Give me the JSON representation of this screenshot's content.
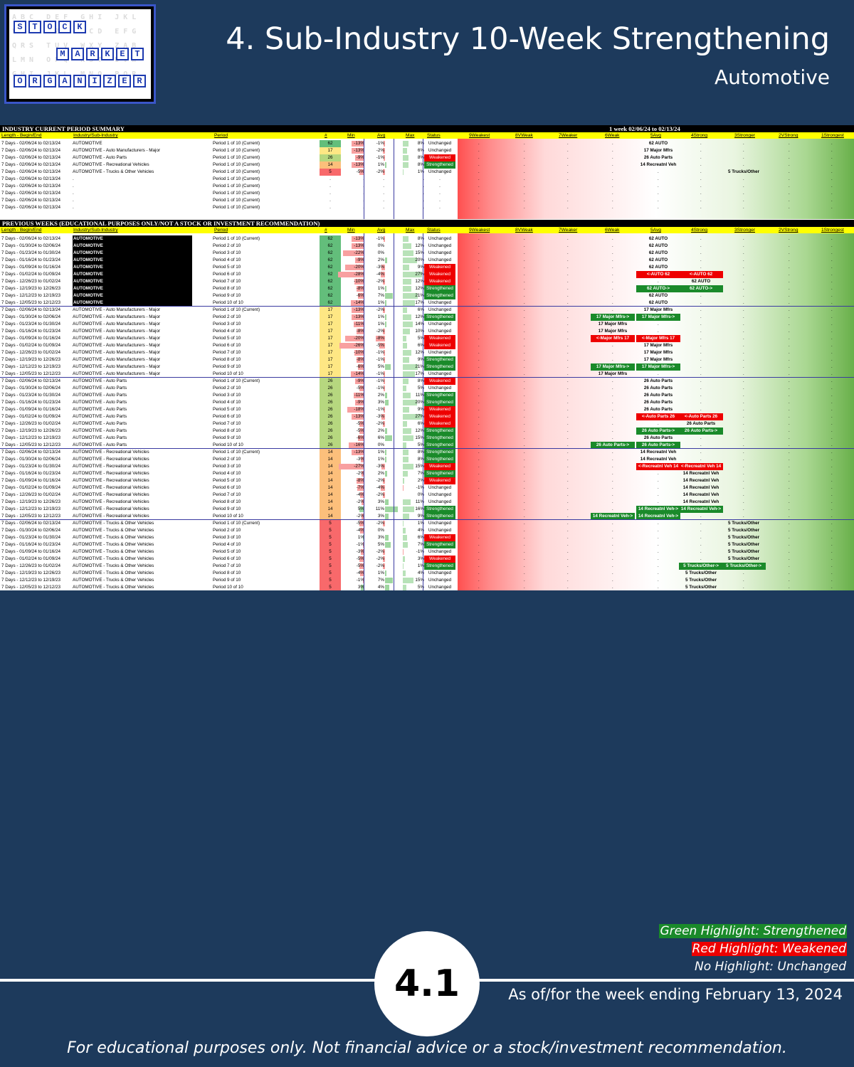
{
  "logo": {
    "row1": "STOCK",
    "row2": "MARKET",
    "row3": "ORGANIZER",
    "ghost_text": "ABC DEF GHI JKL\nVWX YZA BCD EFG\nQRS TUV WXY ZAB\nLMN OPQ RST UVW\nGHI JKL MNO PQR"
  },
  "header": {
    "title": "4. Sub-Industry 10-Week Strengthening",
    "subtitle": "Automotive"
  },
  "sheet": {
    "current_title": "INDUSTRY CURRENT PERIOD SUMMARY",
    "current_range": "1 week 02/06/24 to 02/13/24",
    "previous_title": "PREVIOUS WEEKS (EDUCATIONAL PURPOSES ONLY/NOT A STOCK OR INVESTMENT RECOMMENDATION)",
    "columns": [
      "Length - Begin/End",
      "Industry/Sub-Industry",
      "Period",
      "#",
      "Min",
      "Avg",
      "Max",
      "Status",
      "9Weakest",
      "8VWeak",
      "7Weaker",
      "6Weak",
      "5Avg",
      "4Strong",
      "3Stronger",
      "2VStrong",
      "1Strongest"
    ],
    "current_rows": [
      {
        "len": "7 Days - 02/06/24 to 02/13/24",
        "ind": "AUTOMOTIVE",
        "per": "Period 1 of 10 (Current)",
        "n": "62",
        "min": "-13%",
        "avg": "-1%",
        "max": "8%",
        "status": "Unchanged",
        "tag": "62 AUTO",
        "pos": 4
      },
      {
        "len": "7 Days - 02/06/24 to 02/13/24",
        "ind": "AUTOMOTIVE - Auto Manufacturers - Major",
        "per": "Period 1 of 10 (Current)",
        "n": "17",
        "min": "-13%",
        "avg": "-2%",
        "max": "6%",
        "status": "Unchanged",
        "tag": "17 Major Mfrs",
        "pos": 4
      },
      {
        "len": "7 Days - 02/06/24 to 02/13/24",
        "ind": "AUTOMOTIVE - Auto Parts",
        "per": "Period 1 of 10 (Current)",
        "n": "26",
        "min": "-9%",
        "avg": "-1%",
        "max": "8%",
        "status": "Weakened",
        "tag": "26 Auto Parts",
        "pos": 4
      },
      {
        "len": "7 Days - 02/06/24 to 02/13/24",
        "ind": "AUTOMOTIVE - Recreational Vehicles",
        "per": "Period 1 of 10 (Current)",
        "n": "14",
        "min": "-13%",
        "avg": "1%",
        "max": "8%",
        "status": "Strengthened",
        "tag": "14 Recreatnl Veh",
        "pos": 4
      },
      {
        "len": "7 Days - 02/06/24 to 02/13/24",
        "ind": "AUTOMOTIVE - Trucks & Other Vehicles",
        "per": "Period 1 of 10 (Current)",
        "n": "5",
        "min": "-5%",
        "avg": "-2%",
        "max": "1%",
        "status": "Unchanged",
        "tag": "5 Trucks/Other",
        "pos": 6
      },
      {
        "len": "7 Days - 02/06/24 to 02/13/24",
        "ind": ".",
        "per": "Period 1 of 10 (Current)",
        "n": ".",
        "min": ".",
        "avg": ".",
        "max": ".",
        "status": ".",
        "tag": "",
        "pos": -1
      },
      {
        "len": "7 Days - 02/06/24 to 02/13/24",
        "ind": ".",
        "per": "Period 1 of 10 (Current)",
        "n": ".",
        "min": ".",
        "avg": ".",
        "max": ".",
        "status": ".",
        "tag": "",
        "pos": -1
      },
      {
        "len": "7 Days - 02/06/24 to 02/13/24",
        "ind": ".",
        "per": "Period 1 of 10 (Current)",
        "n": ".",
        "min": ".",
        "avg": ".",
        "max": ".",
        "status": ".",
        "tag": "",
        "pos": -1
      },
      {
        "len": "7 Days - 02/06/24 to 02/13/24",
        "ind": ".",
        "per": "Period 1 of 10 (Current)",
        "n": ".",
        "min": ".",
        "avg": ".",
        "max": ".",
        "status": ".",
        "tag": "",
        "pos": -1
      },
      {
        "len": "7 Days - 02/06/24 to 02/13/24",
        "ind": ".",
        "per": "Period 1 of 10 (Current)",
        "n": ".",
        "min": ".",
        "avg": ".",
        "max": ".",
        "status": ".",
        "tag": "",
        "pos": -1
      }
    ],
    "groups": [
      {
        "ind": "AUTOMOTIVE",
        "n": "62",
        "rows": [
          [
            "7 Days - 02/06/24 to 02/13/24",
            "Period 1 of 10 (Current)",
            "-13%",
            "-1%",
            "8%",
            "Unchanged",
            "62 AUTO",
            4,
            ""
          ],
          [
            "7 Days - 01/30/24 to 02/06/24",
            "Period 2 of 10",
            "-13%",
            "0%",
            "12%",
            "Unchanged",
            "62 AUTO",
            4,
            ""
          ],
          [
            "7 Days - 01/23/24 to 01/30/24",
            "Period 3 of 10",
            "-22%",
            "0%",
            "15%",
            "Unchanged",
            "62 AUTO",
            4,
            ""
          ],
          [
            "7 Days - 01/16/24 to 01/23/24",
            "Period 4 of 10",
            "-9%",
            "2%",
            "20%",
            "Unchanged",
            "62 AUTO",
            4,
            ""
          ],
          [
            "7 Days - 01/09/24 to 01/16/24",
            "Period 5 of 10",
            "-20%",
            "-3%",
            "9%",
            "Weakened",
            "62 AUTO",
            4,
            ""
          ],
          [
            "7 Days - 01/02/24 to 01/09/24",
            "Period 6 of 10",
            "-28%",
            "-4%",
            "27%",
            "Weakened",
            "<-AUTO 62",
            4,
            "<-AUTO 62"
          ],
          [
            "7 Days - 12/26/23 to 01/02/24",
            "Period 7 of 10",
            "-10%",
            "-2%",
            "12%",
            "Weakened",
            "62 AUTO",
            5,
            ""
          ],
          [
            "7 Days - 12/19/23 to 12/26/23",
            "Period 8 of 10",
            "-8%",
            "1%",
            "12%",
            "Strengthened",
            "62 AUTO->",
            4,
            "62 AUTO->"
          ],
          [
            "7 Days - 12/12/23 to 12/19/23",
            "Period 9 of 10",
            "-6%",
            "7%",
            "21%",
            "Strengthened",
            "62 AUTO",
            4,
            ""
          ],
          [
            "7 Days - 12/05/23 to 12/12/23",
            "Period 10 of 10",
            "-14%",
            "1%",
            "17%",
            "Unchanged",
            "62 AUTO",
            4,
            ""
          ]
        ]
      },
      {
        "ind": "AUTOMOTIVE - Auto Manufacturers - Major",
        "n": "17",
        "rows": [
          [
            "7 Days - 02/06/24 to 02/13/24",
            "Period 1 of 10 (Current)",
            "-13%",
            "-2%",
            "6%",
            "Unchanged",
            "17 Major Mfrs",
            4,
            ""
          ],
          [
            "7 Days - 01/30/24 to 02/06/24",
            "Period 2 of 10",
            "-13%",
            "1%",
            "12%",
            "Strengthened",
            "17 Major Mfrs->",
            3,
            "17 Major Mfrs->"
          ],
          [
            "7 Days - 01/23/24 to 01/30/24",
            "Period 3 of 10",
            "-11%",
            "1%",
            "14%",
            "Unchanged",
            "17 Major Mfrs",
            3,
            ""
          ],
          [
            "7 Days - 01/16/24 to 01/23/24",
            "Period 4 of 10",
            "-8%",
            "-2%",
            "10%",
            "Unchanged",
            "17 Major Mfrs",
            3,
            ""
          ],
          [
            "7 Days - 01/09/24 to 01/16/24",
            "Period 5 of 10",
            "-20%",
            "-8%",
            "5%",
            "Weakened",
            "<-Major Mfrs 17",
            3,
            "<-Major Mfrs 17"
          ],
          [
            "7 Days - 01/02/24 to 01/09/24",
            "Period 6 of 10",
            "-26%",
            "-5%",
            "6%",
            "Weakened",
            "17 Major Mfrs",
            4,
            ""
          ],
          [
            "7 Days - 12/26/23 to 01/02/24",
            "Period 7 of 10",
            "-10%",
            "-1%",
            "12%",
            "Unchanged",
            "17 Major Mfrs",
            4,
            ""
          ],
          [
            "7 Days - 12/19/23 to 12/26/23",
            "Period 8 of 10",
            "-8%",
            "-1%",
            "9%",
            "Strengthened",
            "17 Major Mfrs",
            4,
            ""
          ],
          [
            "7 Days - 12/12/23 to 12/19/23",
            "Period 9 of 10",
            "-6%",
            "5%",
            "21%",
            "Strengthened",
            "17 Major Mfrs->",
            3,
            "17 Major Mfrs->"
          ],
          [
            "7 Days - 12/05/23 to 12/12/23",
            "Period 10 of 10",
            "-14%",
            "-1%",
            "17%",
            "Unchanged",
            "17 Major Mfrs",
            3,
            ""
          ]
        ]
      },
      {
        "ind": "AUTOMOTIVE - Auto Parts",
        "n": "26",
        "rows": [
          [
            "7 Days - 02/06/24 to 02/13/24",
            "Period 1 of 10 (Current)",
            "-9%",
            "-1%",
            "8%",
            "Weakened",
            "26 Auto Parts",
            4,
            ""
          ],
          [
            "7 Days - 01/30/24 to 02/06/24",
            "Period 2 of 10",
            "-5%",
            "-1%",
            "5%",
            "Unchanged",
            "26 Auto Parts",
            4,
            ""
          ],
          [
            "7 Days - 01/23/24 to 01/30/24",
            "Period 3 of 10",
            "-11%",
            "2%",
            "11%",
            "Strengthened",
            "26 Auto Parts",
            4,
            ""
          ],
          [
            "7 Days - 01/16/24 to 01/23/24",
            "Period 4 of 10",
            "-9%",
            "3%",
            "20%",
            "Strengthened",
            "26 Auto Parts",
            4,
            ""
          ],
          [
            "7 Days - 01/09/24 to 01/16/24",
            "Period 5 of 10",
            "-18%",
            "-1%",
            "9%",
            "Weakened",
            "26 Auto Parts",
            4,
            ""
          ],
          [
            "7 Days - 01/02/24 to 01/09/24",
            "Period 6 of 10",
            "-13%",
            "-3%",
            "27%",
            "Weakened",
            "<-Auto Parts 26",
            4,
            "<-Auto Parts 26"
          ],
          [
            "7 Days - 12/26/23 to 01/02/24",
            "Period 7 of 10",
            "-5%",
            "-2%",
            "6%",
            "Weakened",
            "26 Auto Parts",
            5,
            ""
          ],
          [
            "7 Days - 12/19/23 to 12/26/23",
            "Period 8 of 10",
            "-5%",
            "2%",
            "12%",
            "Strengthened",
            "26 Auto Parts->",
            4,
            "26 Auto Parts->"
          ],
          [
            "7 Days - 12/12/23 to 12/19/23",
            "Period 9 of 10",
            "-6%",
            "6%",
            "15%",
            "Strengthened",
            "26 Auto Parts",
            4,
            ""
          ],
          [
            "7 Days - 12/05/23 to 12/12/23",
            "Period 10 of 10",
            "-16%",
            "0%",
            "5%",
            "Strengthened",
            "26 Auto Parts->",
            3,
            "26 Auto Parts->"
          ]
        ]
      },
      {
        "ind": "AUTOMOTIVE - Recreational Vehicles",
        "n": "14",
        "rows": [
          [
            "7 Days - 02/06/24 to 02/13/24",
            "Period 1 of 10 (Current)",
            "-13%",
            "1%",
            "8%",
            "Strengthened",
            "14 Recreatnl Veh",
            4,
            ""
          ],
          [
            "7 Days - 01/30/24 to 02/06/24",
            "Period 2 of 10",
            "-3%",
            "1%",
            "8%",
            "Strengthened",
            "14 Recreatnl Veh",
            4,
            ""
          ],
          [
            "7 Days - 01/23/24 to 01/30/24",
            "Period 3 of 10",
            "-27%",
            "-3%",
            "15%",
            "Weakened",
            "<-Recreatnl Veh 14",
            4,
            "<-Recreatnl Veh 14"
          ],
          [
            "7 Days - 01/16/24 to 01/23/24",
            "Period 4 of 10",
            "-2%",
            "2%",
            "7%",
            "Strengthened",
            "14 Recreatnl Veh",
            5,
            ""
          ],
          [
            "7 Days - 01/09/24 to 01/16/24",
            "Period 5 of 10",
            "-8%",
            "-2%",
            "2%",
            "Weakened",
            "14 Recreatnl Veh",
            5,
            ""
          ],
          [
            "7 Days - 01/02/24 to 01/09/24",
            "Period 6 of 10",
            "-7%",
            "-4%",
            "-1%",
            "Unchanged",
            "14 Recreatnl Veh",
            5,
            ""
          ],
          [
            "7 Days - 12/26/23 to 01/02/24",
            "Period 7 of 10",
            "-4%",
            "-2%",
            "0%",
            "Unchanged",
            "14 Recreatnl Veh",
            5,
            ""
          ],
          [
            "7 Days - 12/19/23 to 12/26/23",
            "Period 8 of 10",
            "-2%",
            "3%",
            "11%",
            "Unchanged",
            "14 Recreatnl Veh",
            5,
            ""
          ],
          [
            "7 Days - 12/12/23 to 12/19/23",
            "Period 9 of 10",
            "5%",
            "11%",
            "16%",
            "Strengthened",
            "14 Recreatnl Veh->",
            4,
            "14 Recreatnl Veh->"
          ],
          [
            "7 Days - 12/05/23 to 12/12/23",
            "Period 10 of 10",
            "-2%",
            "3%",
            "9%",
            "Strengthened",
            "14 Recreatnl Veh->",
            3,
            "14 Recreatnl Veh->"
          ]
        ]
      },
      {
        "ind": "AUTOMOTIVE - Trucks & Other Vehicles",
        "n": "5",
        "rows": [
          [
            "7 Days - 02/06/24 to 02/13/24",
            "Period 1 of 10 (Current)",
            "-5%",
            "-2%",
            "1%",
            "Unchanged",
            "5 Trucks/Other",
            6,
            ""
          ],
          [
            "7 Days - 01/30/24 to 02/06/24",
            "Period 2 of 10",
            "-4%",
            "0%",
            "4%",
            "Unchanged",
            "5 Trucks/Other",
            6,
            ""
          ],
          [
            "7 Days - 01/23/24 to 01/30/24",
            "Period 3 of 10",
            "1%",
            "3%",
            "6%",
            "Weakened",
            "5 Trucks/Other",
            6,
            ""
          ],
          [
            "7 Days - 01/16/24 to 01/23/24",
            "Period 4 of 10",
            "-1%",
            "5%",
            "7%",
            "Strengthened",
            "5 Trucks/Other",
            6,
            ""
          ],
          [
            "7 Days - 01/09/24 to 01/16/24",
            "Period 5 of 10",
            "-3%",
            "-2%",
            "-1%",
            "Unchanged",
            "5 Trucks/Other",
            6,
            ""
          ],
          [
            "7 Days - 01/02/24 to 01/09/24",
            "Period 6 of 10",
            "-5%",
            "-2%",
            "3%",
            "Weakened",
            "5 Trucks/Other",
            6,
            ""
          ],
          [
            "7 Days - 12/26/23 to 01/02/24",
            "Period 7 of 10",
            "-5%",
            "-2%",
            "1%",
            "Strengthened",
            "5 Trucks/Other->",
            5,
            "5 Trucks/Other->"
          ],
          [
            "7 Days - 12/19/23 to 12/26/23",
            "Period 8 of 10",
            "-4%",
            "1%",
            "4%",
            "Unchanged",
            "5 Trucks/Other",
            5,
            ""
          ],
          [
            "7 Days - 12/12/23 to 12/19/23",
            "Period 9 of 10",
            "-1%",
            "7%",
            "15%",
            "Unchanged",
            "5 Trucks/Other",
            5,
            ""
          ],
          [
            "7 Days - 12/05/23 to 12/12/23",
            "Period 10 of 10",
            "3%",
            "4%",
            "5%",
            "Unchanged",
            "5 Trucks/Other",
            5,
            ""
          ]
        ]
      }
    ]
  },
  "legend": {
    "green": "Green Highlight: Strengthened",
    "red": "Red Highlight: Weakened",
    "none": "No Highlight: Unchanged"
  },
  "page_number": "4.1",
  "asof": "As of/for the week ending February 13, 2024",
  "disclaimer": "For educational purposes only. Not financial advice or a stock/investment recommendation."
}
